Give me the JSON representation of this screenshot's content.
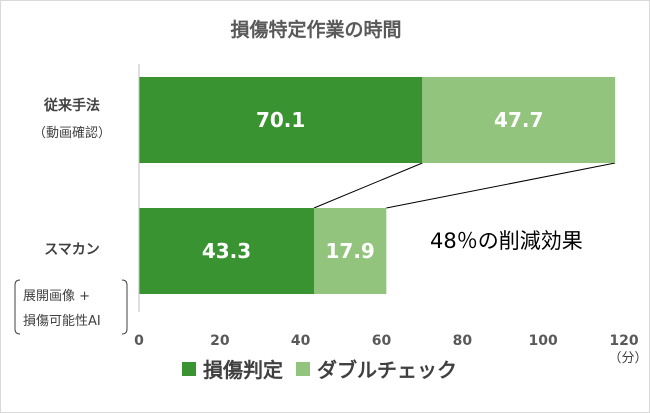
{
  "chart_data": {
    "type": "bar",
    "orientation": "horizontal",
    "stacked": true,
    "title": "損傷特定作業の時間",
    "categories": [
      {
        "label": "従来手法",
        "sublabel": "（動画確認）"
      },
      {
        "label": "スマカン",
        "sublabel_lines": [
          "展開画像 +",
          "損傷可能性AI"
        ]
      }
    ],
    "series": [
      {
        "name": "損傷判定",
        "color": "#3a9331",
        "values": [
          70.1,
          43.3
        ]
      },
      {
        "name": "ダブルチェック",
        "color": "#93c47d",
        "values": [
          47.7,
          17.9
        ]
      }
    ],
    "xlim": [
      0,
      120
    ],
    "xticks": [
      0,
      20,
      40,
      60,
      80,
      100,
      120
    ],
    "x_unit": "（分）",
    "grid": false,
    "legend_position": "bottom",
    "annotation": "48％の削減効果"
  }
}
